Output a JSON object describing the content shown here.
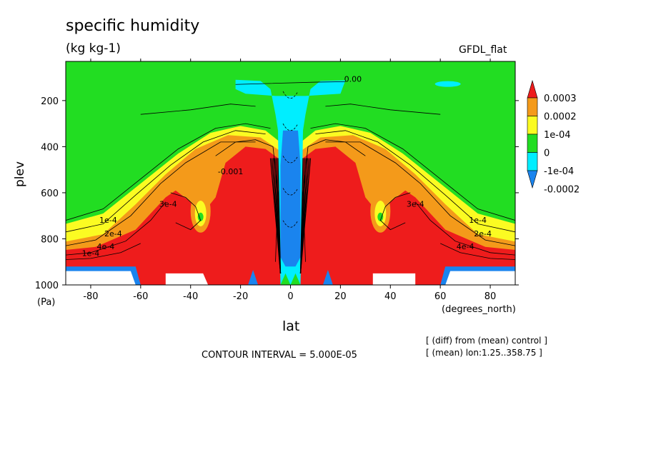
{
  "title": "specific humidity",
  "units": "(kg kg-1)",
  "model": "GFDL_flat",
  "colors": {
    "red": "#ee1c1c",
    "orange": "#f49a1a",
    "yellow": "#fbfb22",
    "green": "#22dd22",
    "cyan": "#00eeff",
    "blue": "#1a84ee"
  },
  "chart_data": {
    "type": "heatmap",
    "subtype": "filled contour (latitude-pressure cross section)",
    "xlabel": "lat",
    "xunit": "(degrees_north)",
    "ylabel": "plev",
    "yunit": "(Pa)",
    "xlim": [
      -90,
      90
    ],
    "ylim": [
      1000,
      30
    ],
    "x_ticks": [
      -80,
      -60,
      -40,
      -20,
      0,
      20,
      40,
      60,
      80
    ],
    "y_ticks": [
      200,
      400,
      600,
      800,
      1000
    ],
    "colorbar": {
      "labels": [
        "0.0003",
        "0.0002",
        "1e-04",
        "0",
        "-1e-04",
        "-0.0002"
      ],
      "levels": [
        0.0003,
        0.0002,
        0.0001,
        0,
        -0.0001,
        -0.0002
      ],
      "colors": [
        "#ee1c1c",
        "#f49a1a",
        "#fbfb22",
        "#22dd22",
        "#00eeff",
        "#1a84ee"
      ]
    },
    "contour_labels": [
      "0.00",
      "1e-4",
      "2e-4",
      "3e-4",
      "4e-4",
      "1e-4",
      "2e-4",
      "3e-4",
      "4e-4",
      "1e-4",
      "-0.001"
    ],
    "contour_interval": "CONTOUR INTERVAL = 5.000E-05",
    "annotations": [
      "[ (diff) from (mean) control ]",
      "[ (mean) lon:1.25..358.75 ]"
    ]
  }
}
